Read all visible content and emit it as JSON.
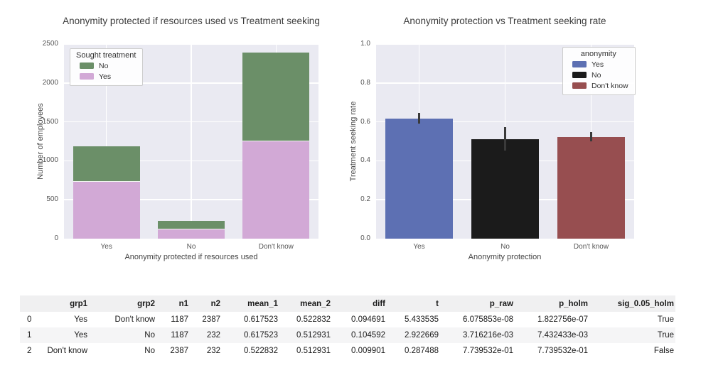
{
  "chart_data": [
    {
      "type": "bar",
      "subtype": "stacked",
      "title": "Anonymity protected if resources used vs Treatment seeking",
      "xlabel": "Anonymity protected if resources used",
      "ylabel": "Number of employees",
      "categories": [
        "Yes",
        "No",
        "Don't know"
      ],
      "yticks": [
        "0",
        "500",
        "1000",
        "1500",
        "2000",
        "2500"
      ],
      "ylim": [
        0,
        2500
      ],
      "grid": "darkgrid-white-on-gray",
      "legend": {
        "title": "Sought treatment",
        "position": "upper-left",
        "entries": [
          {
            "label": "No",
            "color": "#6b8f68"
          },
          {
            "label": "Yes",
            "color": "#d2a9d6"
          }
        ]
      },
      "series": [
        {
          "name": "Yes",
          "color": "#d2a9d6",
          "values": [
            733,
            119,
            1248
          ]
        },
        {
          "name": "No",
          "color": "#6b8f68",
          "values": [
            454,
            113,
            1139
          ]
        }
      ],
      "totals": [
        1187,
        232,
        2387
      ]
    },
    {
      "type": "bar",
      "subtype": "mean-with-errorbars",
      "title": "Anonymity protection vs Treatment seeking rate",
      "xlabel": "Anonymity protection",
      "ylabel": "Treatment seeking rate",
      "categories": [
        "Yes",
        "No",
        "Don't know"
      ],
      "yticks": [
        "0.0",
        "0.2",
        "0.4",
        "0.6",
        "0.8",
        "1.0"
      ],
      "ylim": [
        0,
        1
      ],
      "grid": "darkgrid-white-on-gray",
      "legend": {
        "title": "anonymity",
        "position": "upper-right",
        "entries": [
          {
            "label": "Yes",
            "color": "#5d70b3"
          },
          {
            "label": "No",
            "color": "#1b1b1b"
          },
          {
            "label": "Don't know",
            "color": "#974e50"
          }
        ]
      },
      "values": [
        0.617523,
        0.512931,
        0.522832
      ],
      "bar_colors": [
        "#5d70b3",
        "#1b1b1b",
        "#974e50"
      ],
      "errors_low": [
        0.59,
        0.454,
        0.499
      ],
      "errors_high": [
        0.646,
        0.575,
        0.547
      ],
      "errorbar_color": "#3a3a3a"
    }
  ],
  "table": {
    "columns": [
      "",
      "grp1",
      "grp2",
      "n1",
      "n2",
      "mean_1",
      "mean_2",
      "diff",
      "t",
      "p_raw",
      "p_holm",
      "sig_0.05_holm"
    ],
    "rows": [
      [
        "0",
        "Yes",
        "Don't know",
        "1187",
        "2387",
        "0.617523",
        "0.522832",
        "0.094691",
        "5.433535",
        "6.075853e-08",
        "1.822756e-07",
        "True"
      ],
      [
        "1",
        "Yes",
        "No",
        "1187",
        "232",
        "0.617523",
        "0.512931",
        "0.104592",
        "2.922669",
        "3.716216e-03",
        "7.432433e-03",
        "True"
      ],
      [
        "2",
        "Don't know",
        "No",
        "2387",
        "232",
        "0.522832",
        "0.512931",
        "0.009901",
        "0.287488",
        "7.739532e-01",
        "7.739532e-01",
        "False"
      ]
    ]
  },
  "colors": {
    "plot_background": "#eaeaf2",
    "gridline": "#ffffff",
    "title_text": "#3a3a3a",
    "tick_text": "#555555",
    "table_header_bg": "#f0f0f1",
    "table_stripe_bg": "#f5f5f6"
  }
}
